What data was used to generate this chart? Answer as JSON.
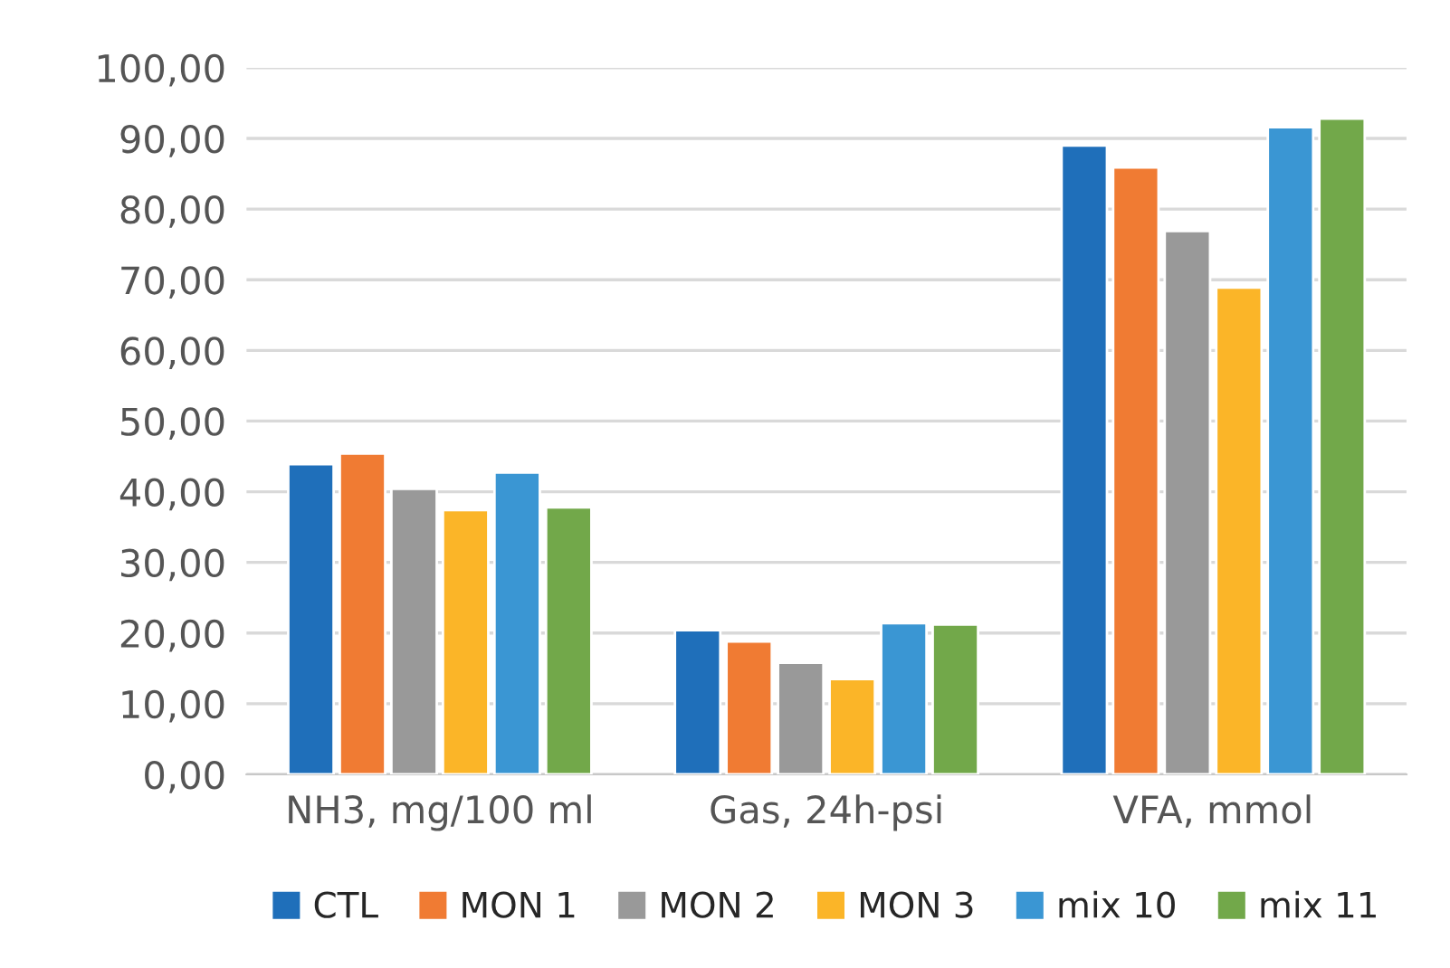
{
  "chart_data": {
    "type": "bar",
    "categories": [
      "NH3, mg/100 ml",
      "Gas, 24h-psi",
      "VFA, mmol"
    ],
    "series": [
      {
        "name": "CTL",
        "color": "#1f6fba",
        "values": [
          43.9,
          20.4,
          89.0
        ]
      },
      {
        "name": "MON 1",
        "color": "#f07b33",
        "values": [
          45.4,
          18.8,
          85.9
        ]
      },
      {
        "name": "MON 2",
        "color": "#999999",
        "values": [
          40.4,
          15.8,
          76.9
        ]
      },
      {
        "name": "MON 3",
        "color": "#fbb528",
        "values": [
          37.4,
          13.5,
          68.9
        ]
      },
      {
        "name": "mix 10",
        "color": "#3a96d3",
        "values": [
          42.7,
          21.4,
          91.6
        ]
      },
      {
        "name": "mix 11",
        "color": "#72a84a",
        "values": [
          37.8,
          21.2,
          92.8
        ]
      }
    ],
    "ylim": [
      0,
      100
    ],
    "yticks": [
      {
        "value": 0,
        "label": "0,00"
      },
      {
        "value": 10,
        "label": "10,00"
      },
      {
        "value": 20,
        "label": "20,00"
      },
      {
        "value": 30,
        "label": "30,00"
      },
      {
        "value": 40,
        "label": "40,00"
      },
      {
        "value": 50,
        "label": "50,00"
      },
      {
        "value": 60,
        "label": "60,00"
      },
      {
        "value": 70,
        "label": "70,00"
      },
      {
        "value": 80,
        "label": "80,00"
      },
      {
        "value": 90,
        "label": "90,00"
      },
      {
        "value": 100,
        "label": "100,00"
      }
    ],
    "grid": "y",
    "legend": "bottom"
  }
}
